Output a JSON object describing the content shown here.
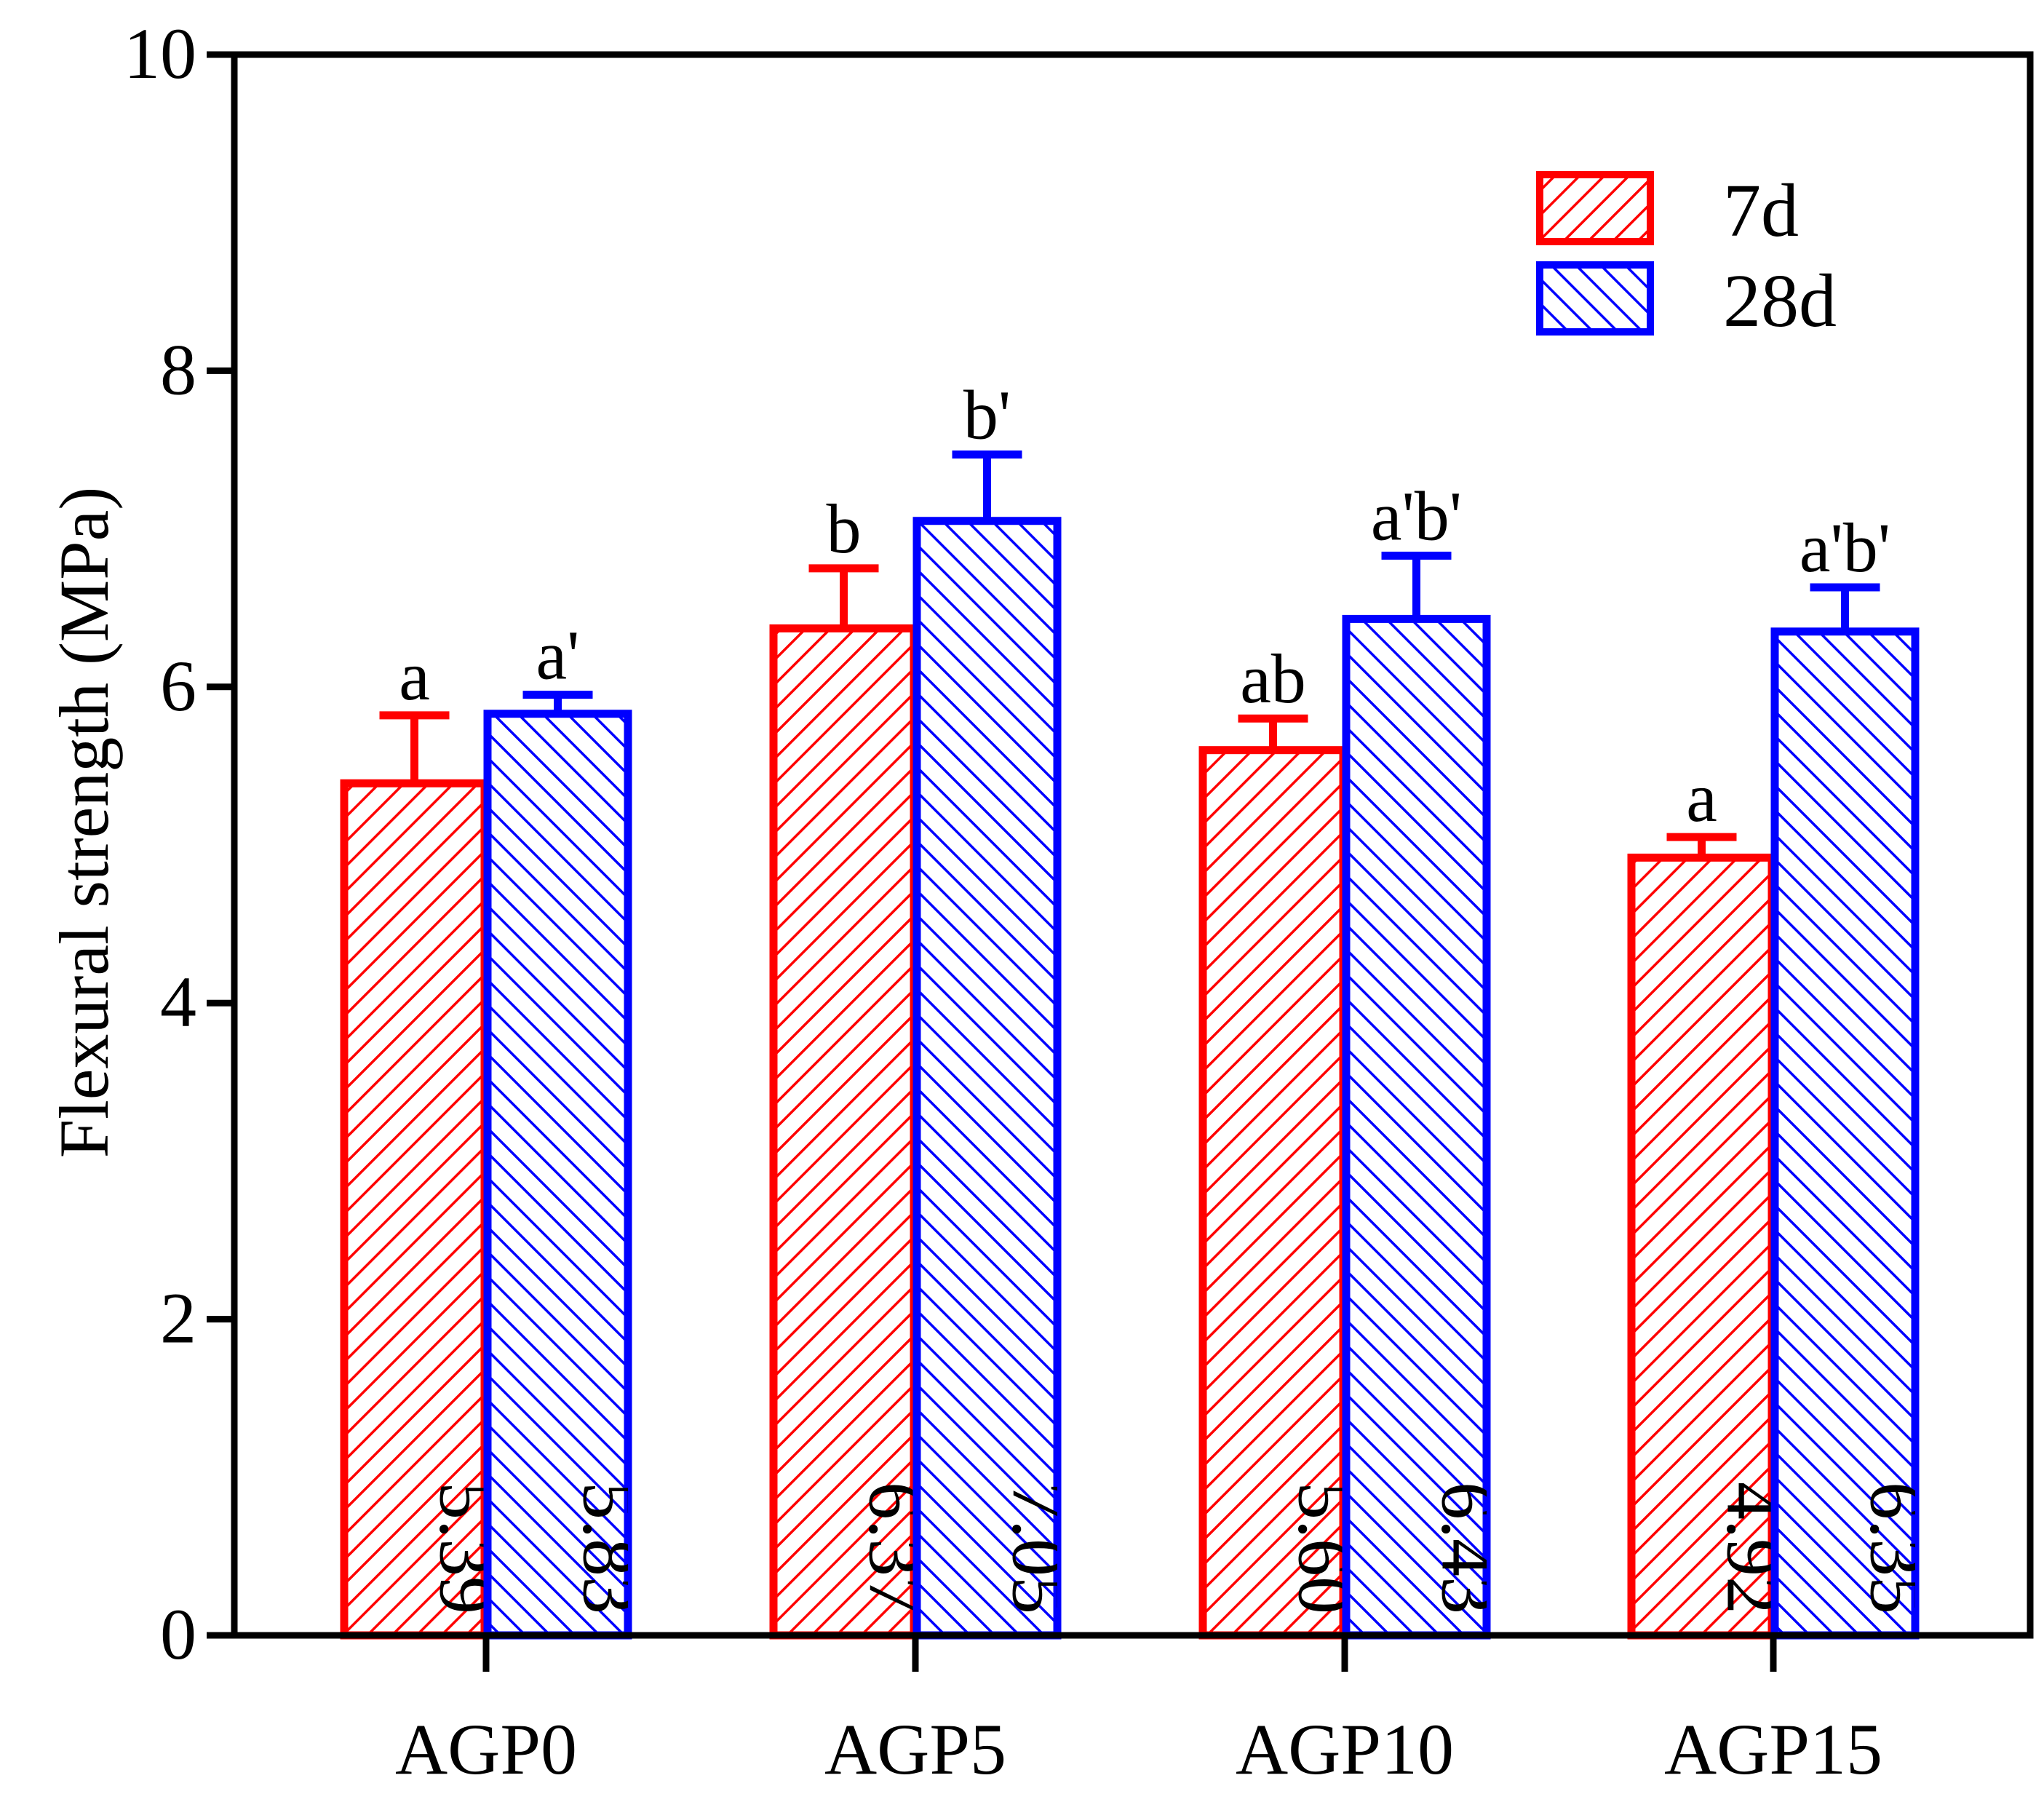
{
  "chart_data": {
    "type": "bar",
    "ylabel": "Flexural strength (MPa)",
    "xlabel": "",
    "ylim": [
      0,
      10
    ],
    "yticks": [
      "0",
      "2",
      "4",
      "6",
      "8",
      "10"
    ],
    "categories": [
      "AGP0",
      "AGP5",
      "AGP10",
      "AGP15"
    ],
    "legend_position": "top-right",
    "series": [
      {
        "name": "7d",
        "color": "#ff0000",
        "hatch": "forward-diagonal",
        "values": [
          5.39,
          6.37,
          5.6,
          4.92
        ],
        "errors": [
          0.43,
          0.38,
          0.2,
          0.13
        ],
        "value_labels": [
          "5.39",
          "6.37",
          "5.60",
          "4.92"
        ],
        "letters": [
          "a",
          "b",
          "ab",
          "a"
        ]
      },
      {
        "name": "28d",
        "color": "#0000ff",
        "hatch": "back-diagonal",
        "values": [
          5.83,
          7.05,
          6.43,
          6.35
        ],
        "errors": [
          0.12,
          0.42,
          0.4,
          0.28
        ],
        "value_labels": [
          "5.83",
          "7.05",
          "6.43",
          "6.35"
        ],
        "letters": [
          "a'",
          "b'",
          "a'b'",
          "a'b'"
        ]
      }
    ]
  }
}
